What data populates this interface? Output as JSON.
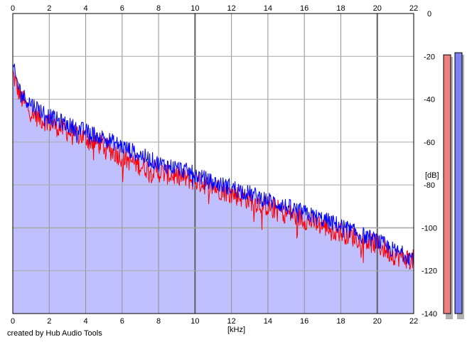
{
  "footer_text": "created by Hub Audio Tools",
  "chart_data": {
    "type": "line",
    "title": "",
    "xlabel": "[kHz]",
    "ylabel": "[dB]",
    "xlim": [
      0,
      22
    ],
    "ylim": [
      -140,
      0
    ],
    "x_ticks": [
      0,
      2,
      4,
      6,
      8,
      10,
      12,
      14,
      16,
      18,
      20,
      22
    ],
    "x_tick_labels": [
      "0",
      "2",
      "4",
      "6",
      "8",
      "10",
      "12",
      "14",
      "16",
      "18",
      "20",
      "22"
    ],
    "y_ticks": [
      0,
      -20,
      -40,
      -60,
      -80,
      -100,
      -120,
      -140
    ],
    "y_tick_labels": [
      "0",
      "-20",
      "-40",
      "-60",
      "-80",
      "-100",
      "-120",
      "-140"
    ],
    "grid": true,
    "x_axis_labels_top_and_bottom": true,
    "y_axis_side": "right",
    "background_fill_color": "#c0c0ff",
    "series": [
      {
        "color": "#ff0000",
        "x": [
          0,
          0.25,
          0.5,
          1,
          1.5,
          2,
          3,
          4,
          5,
          6,
          7,
          8,
          9,
          10,
          11,
          12,
          13,
          14,
          15,
          16,
          17,
          18,
          19,
          20,
          21,
          22
        ],
        "y": [
          -28,
          -35,
          -40,
          -46,
          -49,
          -51,
          -55,
          -58,
          -62,
          -67,
          -71,
          -74,
          -76,
          -78,
          -81,
          -84,
          -87,
          -90,
          -93,
          -96,
          -99,
          -102,
          -105,
          -108,
          -113,
          -115
        ],
        "noise_db": 5
      },
      {
        "color": "#0000ff",
        "x": [
          0,
          0.25,
          0.5,
          1,
          1.5,
          2,
          3,
          4,
          5,
          6,
          7,
          8,
          9,
          10,
          11,
          12,
          13,
          14,
          15,
          16,
          17,
          18,
          19,
          20,
          21,
          22
        ],
        "y": [
          -25,
          -32,
          -38,
          -42,
          -45,
          -48,
          -52,
          -55,
          -58,
          -62,
          -66,
          -70,
          -72,
          -75,
          -79,
          -81,
          -84,
          -87,
          -90,
          -93,
          -96,
          -99,
          -103,
          -106,
          -111,
          -114
        ],
        "noise_db": 4
      }
    ],
    "level_meters": [
      {
        "color": "#f08080",
        "peak_db": -10
      },
      {
        "color": "#8080f0",
        "peak_db": -9
      }
    ]
  }
}
